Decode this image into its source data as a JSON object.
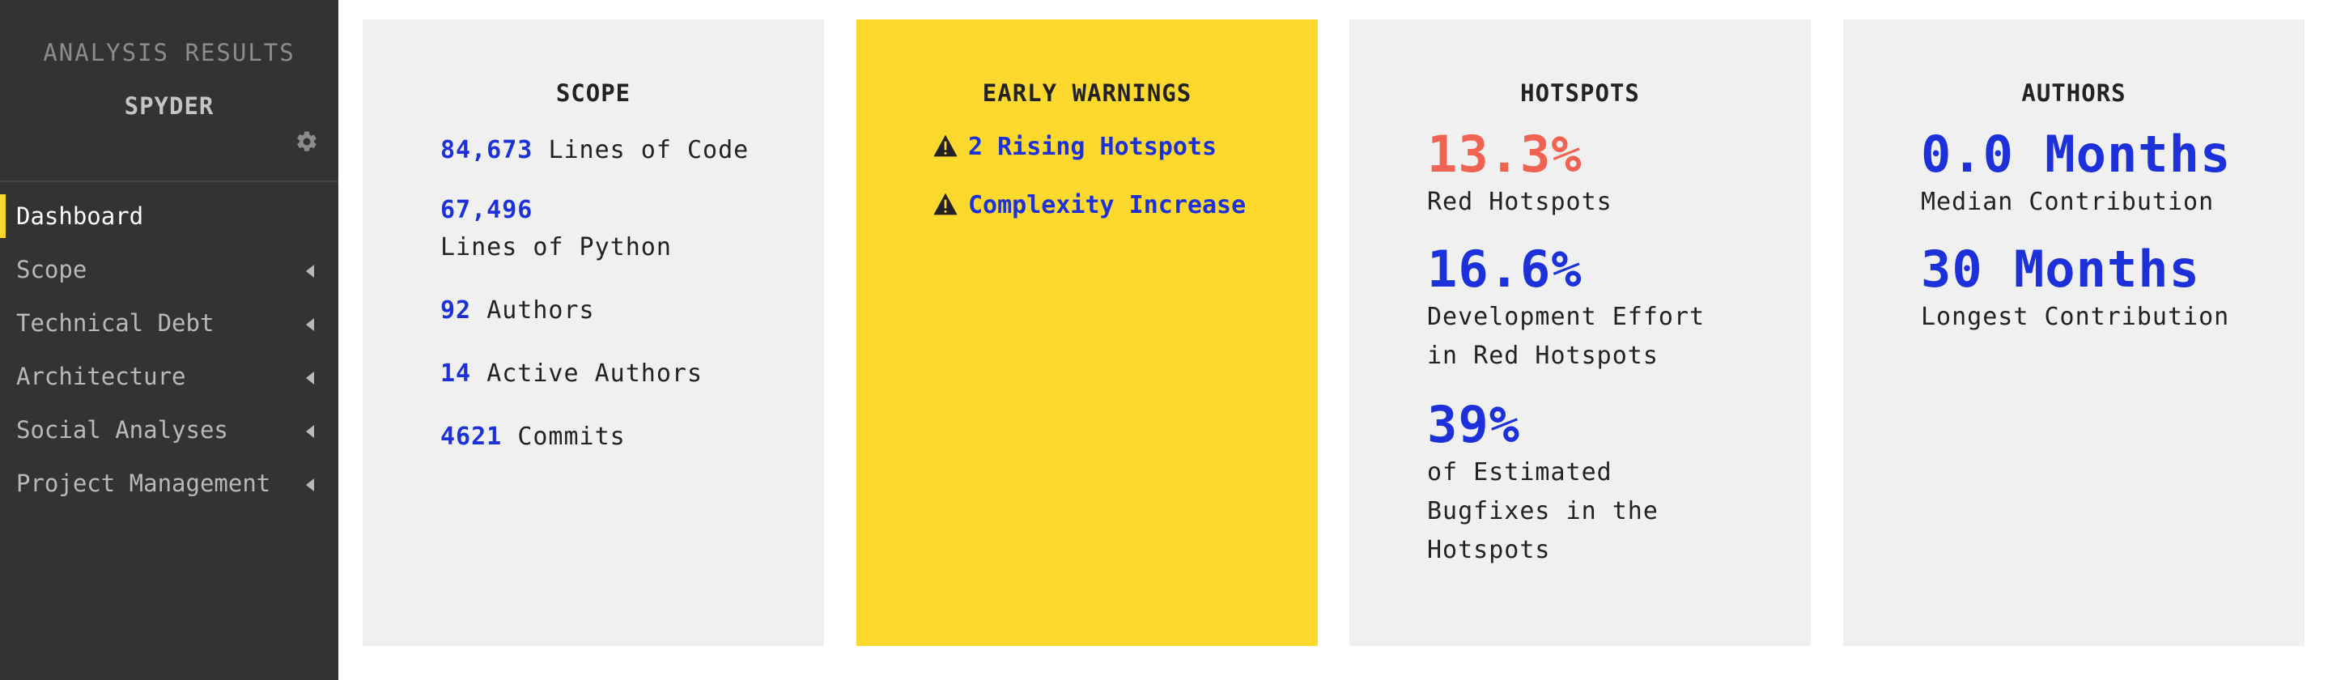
{
  "sidebar": {
    "title": "ANALYSIS RESULTS",
    "project": "SPYDER",
    "settings_icon": "gear-icon",
    "items": [
      {
        "label": "Dashboard",
        "active": true
      },
      {
        "label": "Scope"
      },
      {
        "label": "Technical Debt"
      },
      {
        "label": "Architecture"
      },
      {
        "label": "Social Analyses"
      },
      {
        "label": "Project Management"
      }
    ]
  },
  "scope": {
    "title": "SCOPE",
    "loc_value": "84,673",
    "loc_label": "Lines of Code",
    "py_value": "67,496",
    "py_label": "Lines of Python",
    "authors_value": "92",
    "authors_label": "Authors",
    "active_value": "14",
    "active_label": "Active Authors",
    "commits_value": "4621",
    "commits_label": "Commits"
  },
  "warnings": {
    "title": "EARLY WARNINGS",
    "icon": "warning-triangle-icon",
    "items": [
      "2 Rising Hotspots",
      "Complexity Increase"
    ]
  },
  "hotspots": {
    "title": "HOTSPOTS",
    "red_value": "13.3%",
    "red_label": "Red Hotspots",
    "effort_value": "16.6%",
    "effort_label_1": "Development Effort",
    "effort_label_2": "in Red Hotspots",
    "bugfix_value": "39%",
    "bugfix_label_1": "of Estimated",
    "bugfix_label_2": "Bugfixes in the",
    "bugfix_label_3": "Hotspots"
  },
  "authors": {
    "title": "AUTHORS",
    "median_value": "0.0 Months",
    "median_label": "Median Contribution",
    "longest_value": "30 Months",
    "longest_label": "Longest Contribution"
  },
  "colors": {
    "sidebar_bg": "#333333",
    "accent_yellow": "#fdd92e",
    "link_blue": "#1c31d9",
    "alert_red": "#f06352",
    "card_bg": "#f0f0f0"
  }
}
